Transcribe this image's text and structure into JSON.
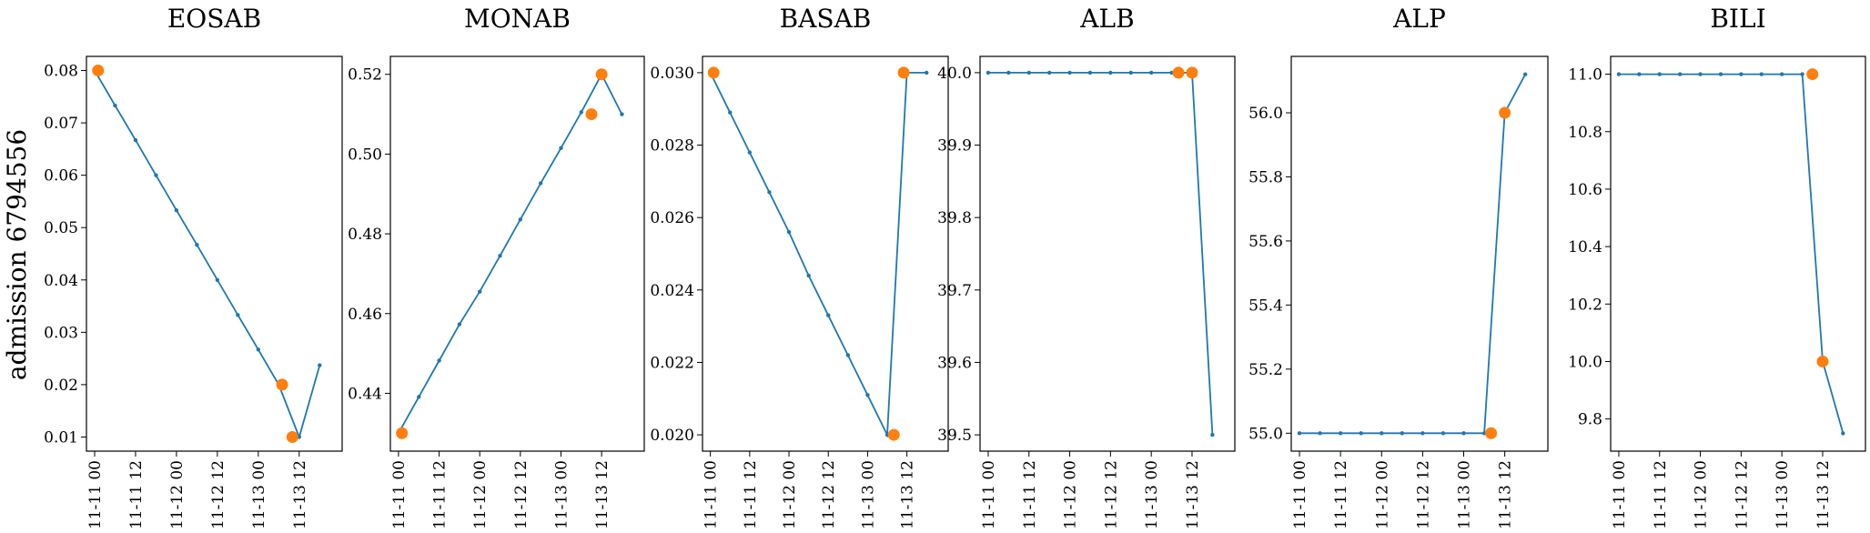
{
  "figure": {
    "row_label": "admission 6794556"
  },
  "colors": {
    "series": "#1f77b4",
    "highlight": "#ff7f0e"
  },
  "chart_data": [
    {
      "type": "line",
      "title": "EOSAB",
      "x_axis": "datetime",
      "x_ticks": [
        "11-11 00",
        "11-11 12",
        "11-12 00",
        "11-12 12",
        "11-13 00",
        "11-13 12"
      ],
      "y_ticks": [
        "0.01",
        "0.02",
        "0.03",
        "0.04",
        "0.05",
        "0.06",
        "0.07",
        "0.08"
      ],
      "ylim": [
        0.0073,
        0.0827
      ],
      "series": [
        {
          "x": [
            "11-11 00:00",
            "11-11 06:00",
            "11-11 12:00",
            "11-11 18:00",
            "11-12 00:00",
            "11-12 06:00",
            "11-12 12:00",
            "11-12 18:00",
            "11-13 00:00",
            "11-13 06:00",
            "11-13 12:00",
            "11-13 18:00"
          ],
          "y": [
            0.08,
            0.0733,
            0.0667,
            0.06,
            0.0533,
            0.0467,
            0.04,
            0.0333,
            0.0267,
            0.02,
            0.01,
            0.0237
          ]
        }
      ],
      "highlights": {
        "x": [
          "11-11 01:00",
          "11-13 07:00",
          "11-13 10:00"
        ],
        "y": [
          0.08,
          0.02,
          0.01
        ]
      }
    },
    {
      "type": "line",
      "title": "MONAB",
      "x_axis": "datetime",
      "x_ticks": [
        "11-11 00",
        "11-11 12",
        "11-12 00",
        "11-12 12",
        "11-13 00",
        "11-13 12"
      ],
      "y_ticks": [
        "0.44",
        "0.46",
        "0.48",
        "0.50",
        "0.52"
      ],
      "ylim": [
        0.4255,
        0.5245
      ],
      "series": [
        {
          "x": [
            "11-11 00:00",
            "11-11 06:00",
            "11-11 12:00",
            "11-11 18:00",
            "11-12 00:00",
            "11-12 06:00",
            "11-12 12:00",
            "11-12 18:00",
            "11-13 00:00",
            "11-13 06:00",
            "11-13 12:00",
            "11-13 18:00"
          ],
          "y": [
            0.43,
            0.4391,
            0.4482,
            0.4573,
            0.4655,
            0.4745,
            0.4836,
            0.4927,
            0.5015,
            0.5105,
            0.52,
            0.51
          ]
        }
      ],
      "highlights": {
        "x": [
          "11-11 01:00",
          "11-13 09:00",
          "11-13 12:00"
        ],
        "y": [
          0.43,
          0.51,
          0.52
        ]
      }
    },
    {
      "type": "line",
      "title": "BASAB",
      "x_axis": "datetime",
      "x_ticks": [
        "11-11 00",
        "11-11 12",
        "11-12 00",
        "11-12 12",
        "11-13 00",
        "11-13 12"
      ],
      "y_ticks": [
        "0.020",
        "0.022",
        "0.024",
        "0.026",
        "0.028",
        "0.030"
      ],
      "ylim": [
        0.01955,
        0.03045
      ],
      "series": [
        {
          "x": [
            "11-11 00:00",
            "11-11 06:00",
            "11-11 12:00",
            "11-11 18:00",
            "11-12 00:00",
            "11-12 06:00",
            "11-12 12:00",
            "11-12 18:00",
            "11-13 00:00",
            "11-13 06:00",
            "11-13 12:00",
            "11-13 18:00"
          ],
          "y": [
            0.03,
            0.0289,
            0.0278,
            0.0267,
            0.0256,
            0.0244,
            0.0233,
            0.0222,
            0.0211,
            0.02,
            0.03,
            0.03
          ]
        }
      ],
      "highlights": {
        "x": [
          "11-11 01:00",
          "11-13 08:00",
          "11-13 11:00"
        ],
        "y": [
          0.03,
          0.02,
          0.03
        ]
      }
    },
    {
      "type": "line",
      "title": "ALB",
      "x_axis": "datetime",
      "x_ticks": [
        "11-11 00",
        "11-11 12",
        "11-12 00",
        "11-12 12",
        "11-13 00",
        "11-13 12"
      ],
      "y_ticks": [
        "39.5",
        "39.6",
        "39.7",
        "39.8",
        "39.9",
        "40.0"
      ],
      "ylim": [
        39.4775,
        40.0225
      ],
      "series": [
        {
          "x": [
            "11-11 00:00",
            "11-11 06:00",
            "11-11 12:00",
            "11-11 18:00",
            "11-12 00:00",
            "11-12 06:00",
            "11-12 12:00",
            "11-12 18:00",
            "11-13 00:00",
            "11-13 06:00",
            "11-13 12:00",
            "11-13 18:00"
          ],
          "y": [
            40.0,
            40.0,
            40.0,
            40.0,
            40.0,
            40.0,
            40.0,
            40.0,
            40.0,
            40.0,
            40.0,
            39.5
          ]
        }
      ],
      "highlights": {
        "x": [
          "11-13 08:00",
          "11-13 12:00"
        ],
        "y": [
          40.0,
          40.0
        ]
      }
    },
    {
      "type": "line",
      "title": "ALP",
      "x_axis": "datetime",
      "x_ticks": [
        "11-11 00",
        "11-11 12",
        "11-12 00",
        "11-12 12",
        "11-13 00",
        "11-13 12"
      ],
      "y_ticks": [
        "55.0",
        "55.2",
        "55.4",
        "55.6",
        "55.8",
        "56.0"
      ],
      "ylim": [
        54.944,
        56.176
      ],
      "series": [
        {
          "x": [
            "11-11 00:00",
            "11-11 06:00",
            "11-11 12:00",
            "11-11 18:00",
            "11-12 00:00",
            "11-12 06:00",
            "11-12 12:00",
            "11-12 18:00",
            "11-13 00:00",
            "11-13 06:00",
            "11-13 12:00",
            "11-13 18:00"
          ],
          "y": [
            55.0,
            55.0,
            55.0,
            55.0,
            55.0,
            55.0,
            55.0,
            55.0,
            55.0,
            55.0,
            56.0,
            56.12
          ]
        }
      ],
      "highlights": {
        "x": [
          "11-13 08:00",
          "11-13 12:00"
        ],
        "y": [
          55.0,
          56.0
        ]
      }
    },
    {
      "type": "line",
      "title": "BILI",
      "x_axis": "datetime",
      "x_ticks": [
        "11-11 00",
        "11-11 12",
        "11-12 00",
        "11-12 12",
        "11-13 00",
        "11-13 12"
      ],
      "y_ticks": [
        "9.8",
        "10.0",
        "10.2",
        "10.4",
        "10.6",
        "10.8",
        "11.0"
      ],
      "ylim": [
        9.688,
        11.062
      ],
      "series": [
        {
          "x": [
            "11-11 00:00",
            "11-11 06:00",
            "11-11 12:00",
            "11-11 18:00",
            "11-12 00:00",
            "11-12 06:00",
            "11-12 12:00",
            "11-12 18:00",
            "11-13 00:00",
            "11-13 06:00",
            "11-13 12:00",
            "11-13 18:00"
          ],
          "y": [
            11.0,
            11.0,
            11.0,
            11.0,
            11.0,
            11.0,
            11.0,
            11.0,
            11.0,
            11.0,
            10.0,
            9.75
          ]
        }
      ],
      "highlights": {
        "x": [
          "11-13 09:00",
          "11-13 12:00"
        ],
        "y": [
          11.0,
          10.0
        ]
      }
    }
  ]
}
